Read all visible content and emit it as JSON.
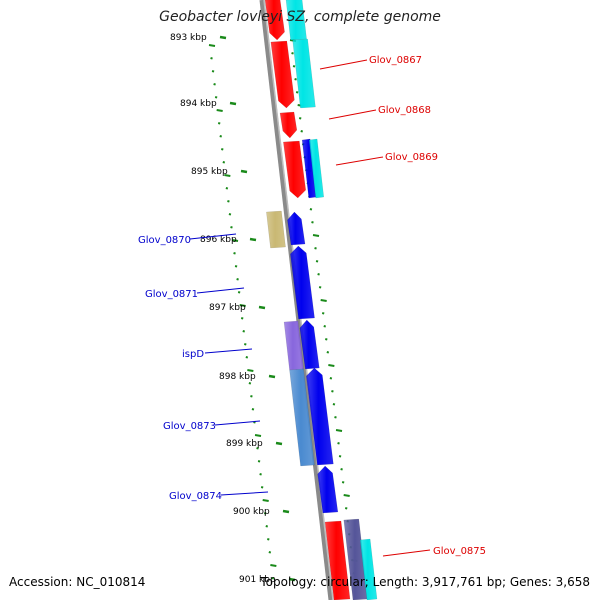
{
  "title": "Geobacter lovleyi SZ, complete genome",
  "footer": {
    "accession": "Accession: NC_010814",
    "topology": "Topology: circular; Length: 3,917,761 bp; Genes: 3,658"
  },
  "colors": {
    "forward_red": "#ff0000",
    "reverse_blue": "#0000ee",
    "cyan": "#00e5e5",
    "olive": "#c9b873",
    "lavender": "#8866dd",
    "steel_blue": "#4a8ad0",
    "slate": "#555599",
    "tick_green": "#1a8a1a",
    "backbone_gray": "#8a8a8a",
    "label_red": "#dd0000",
    "label_blue": "#0000cc"
  },
  "kbp_labels": [
    "893 kbp",
    "894 kbp",
    "895 kbp",
    "896 kbp",
    "897 kbp",
    "898 kbp",
    "899 kbp",
    "900 kbp",
    "901 kbp"
  ],
  "gene_labels": [
    {
      "text": "Glov_0867",
      "side": "right",
      "color": "red"
    },
    {
      "text": "Glov_0868",
      "side": "right",
      "color": "red"
    },
    {
      "text": "Glov_0869",
      "side": "right",
      "color": "red"
    },
    {
      "text": "Glov_0870",
      "side": "left",
      "color": "blue"
    },
    {
      "text": "Glov_0871",
      "side": "left",
      "color": "blue"
    },
    {
      "text": "ispD",
      "side": "left",
      "color": "blue"
    },
    {
      "text": "Glov_0873",
      "side": "left",
      "color": "blue"
    },
    {
      "text": "Glov_0874",
      "side": "left",
      "color": "blue"
    },
    {
      "text": "Glov_0875",
      "side": "right",
      "color": "red"
    }
  ]
}
